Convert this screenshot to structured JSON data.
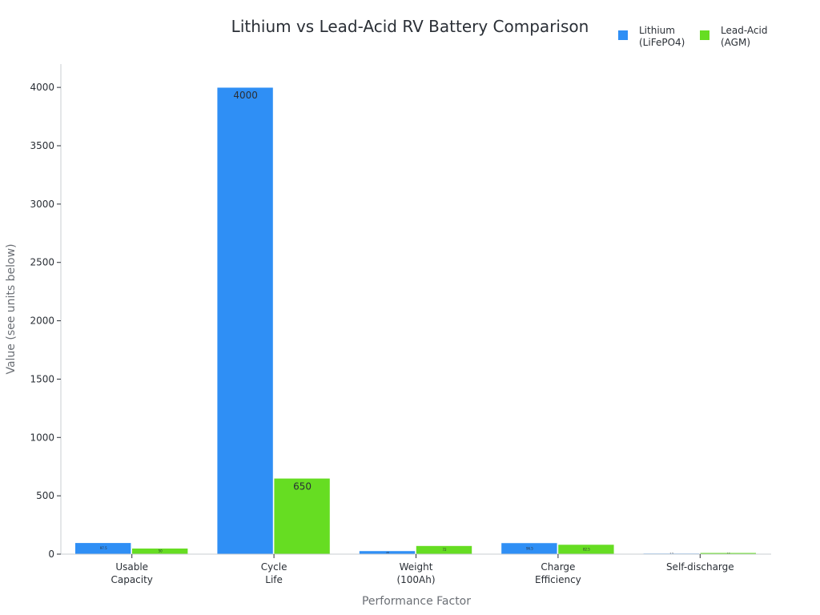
{
  "chart_data": {
    "type": "bar",
    "title": "Lithium vs Lead-Acid RV Battery Comparison",
    "xlabel": "Performance Factor",
    "ylabel": "Value (see units below)",
    "categories": [
      [
        "Usable",
        "Capacity"
      ],
      [
        "Cycle",
        "Life"
      ],
      [
        "Weight",
        "(100Ah)"
      ],
      [
        "Charge",
        "Efficiency"
      ],
      [
        "Self-discharge"
      ]
    ],
    "series": [
      {
        "name": [
          "Lithium",
          "(LiFePO4)"
        ],
        "color": "#2f8ff5",
        "values": [
          97.5,
          4000,
          28,
          96.5,
          2.5
        ],
        "labels": [
          "97.5",
          "4000",
          "28",
          "96.5",
          "2.5"
        ]
      },
      {
        "name": [
          "Lead-Acid",
          "(AGM)"
        ],
        "color": "#66dd22",
        "values": [
          50,
          650,
          72,
          82.5,
          12
        ],
        "labels": [
          "50",
          "650",
          "72",
          "82.5",
          "12"
        ]
      }
    ],
    "ylim": [
      0,
      4200
    ],
    "yticks": [
      0,
      500,
      1000,
      1500,
      2000,
      2500,
      3000,
      3500,
      4000
    ],
    "grid": false,
    "legend_position": "top-right"
  }
}
